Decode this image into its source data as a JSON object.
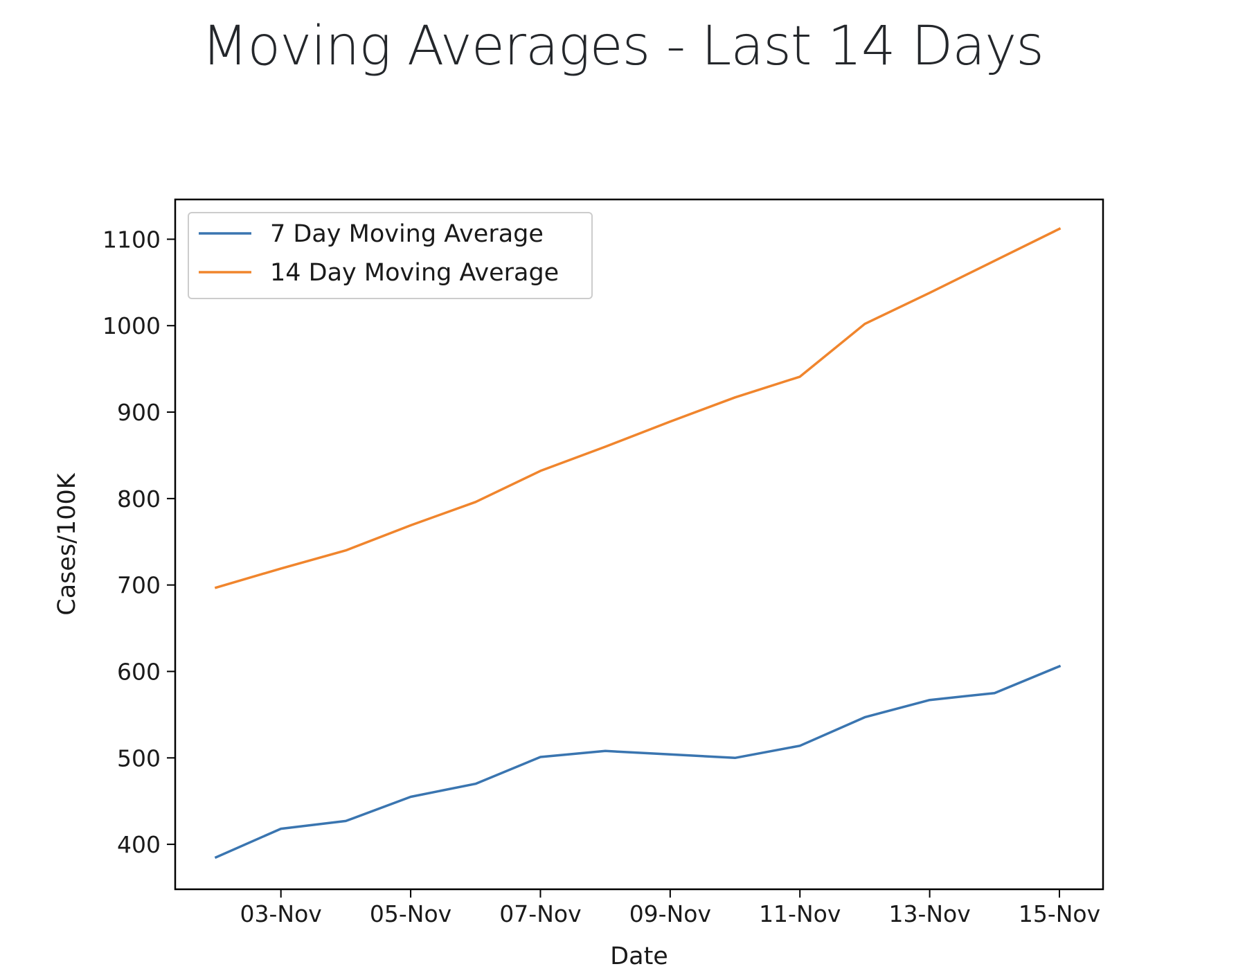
{
  "page": {
    "title": "Moving Averages - Last 14 Days"
  },
  "chart_data": {
    "type": "line",
    "title": "",
    "xlabel": "Date",
    "ylabel": "Cases/100K",
    "x": [
      "02-Nov",
      "03-Nov",
      "04-Nov",
      "05-Nov",
      "06-Nov",
      "07-Nov",
      "08-Nov",
      "09-Nov",
      "10-Nov",
      "11-Nov",
      "12-Nov",
      "13-Nov",
      "14-Nov",
      "15-Nov"
    ],
    "x_tick_labels": [
      "03-Nov",
      "05-Nov",
      "07-Nov",
      "09-Nov",
      "11-Nov",
      "13-Nov",
      "15-Nov"
    ],
    "y_ticks": [
      400,
      500,
      600,
      700,
      800,
      900,
      1000,
      1100
    ],
    "ylim": [
      348,
      1146
    ],
    "grid": false,
    "legend_position": "upper-left",
    "series": [
      {
        "name": "7 Day Moving Average",
        "color": "#3a75b0",
        "values": [
          385,
          418,
          427,
          455,
          470,
          501,
          508,
          504,
          500,
          514,
          547,
          567,
          575,
          606
        ]
      },
      {
        "name": "14 Day Moving Average",
        "color": "#f0852d",
        "values": [
          697,
          719,
          740,
          769,
          796,
          832,
          860,
          889,
          917,
          941,
          1002,
          1038,
          1075,
          1112
        ]
      }
    ]
  }
}
